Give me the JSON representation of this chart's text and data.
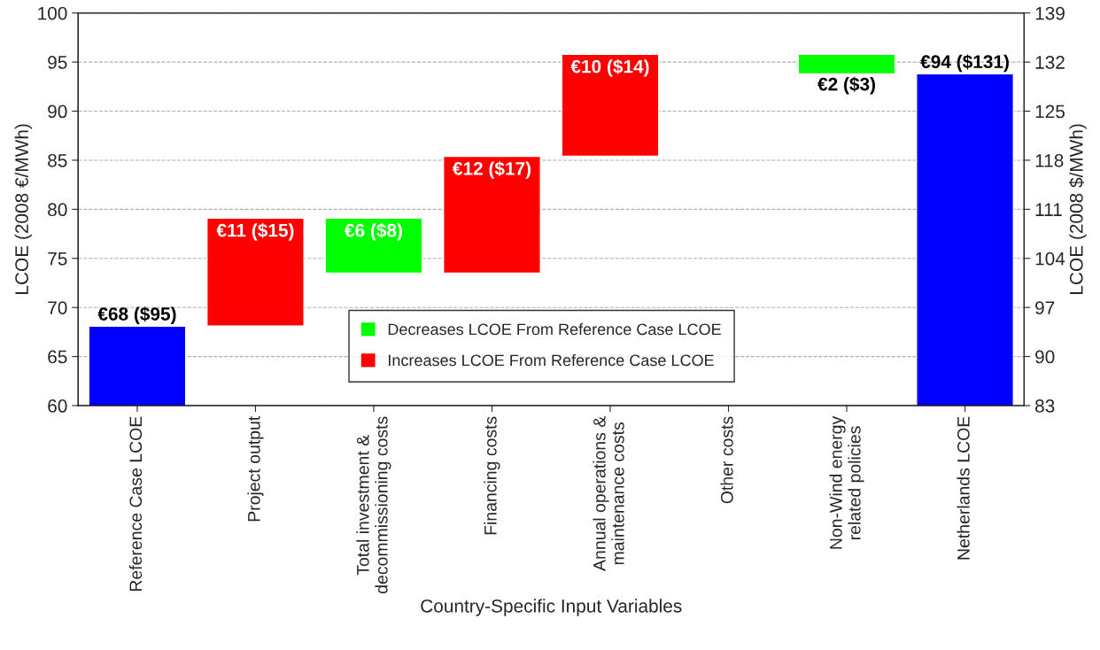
{
  "chart_data": {
    "type": "bar",
    "xlabel": "Country-Specific Input Variables",
    "ylabel": "LCOE (2008 €/MWh)",
    "y2label": "LCOE (2008 $/MWh)",
    "categories": [
      "Reference Case LCOE",
      "Project output",
      "Total investment &\ndecommissioning costs",
      "Financing costs",
      "Annual operations &\nmaintenance costs",
      "Other costs",
      "Non-Wind energy\nrelated policies",
      "Netherlands LCOE"
    ],
    "series": [
      {
        "color": "#0000ff",
        "values": [
          68.1,
          null,
          null,
          null,
          null,
          null,
          null,
          93.8
        ],
        "base": [
          0,
          null,
          null,
          null,
          null,
          null,
          null,
          0
        ],
        "value_labels": [
          "€68 ($95)",
          null,
          null,
          null,
          null,
          null,
          null,
          "€94 ($131)"
        ]
      },
      {
        "name": "Decreases LCOE From Reference Case LCOE",
        "color": "#00ff00",
        "values": [
          null,
          null,
          5.6,
          null,
          null,
          null,
          2,
          null
        ],
        "base": [
          null,
          null,
          73.5,
          null,
          null,
          null,
          93.8,
          null
        ],
        "value_labels": [
          null,
          null,
          "€6 ($8)",
          null,
          null,
          null,
          "€2 ($3)",
          null
        ]
      },
      {
        "name": "Increases LCOE From Reference Case LCOE",
        "color": "#ff0000",
        "values": [
          null,
          11,
          null,
          11.9,
          10.4,
          null,
          null,
          null
        ],
        "base": [
          null,
          68.1,
          null,
          73.5,
          85.4,
          null,
          null,
          null
        ],
        "value_labels": [
          null,
          "€11 ($15)",
          null,
          "€12 ($17)",
          "€10 ($14)",
          null,
          null,
          null
        ]
      }
    ],
    "ylim": [
      60,
      100
    ],
    "yticks": [
      60,
      65,
      70,
      75,
      80,
      85,
      90,
      95,
      100
    ],
    "y2lim": [
      83,
      139
    ],
    "y2ticks": [
      83,
      90,
      97,
      104,
      111,
      118,
      125,
      132,
      139
    ],
    "grid": "y",
    "legend": "bottom"
  }
}
